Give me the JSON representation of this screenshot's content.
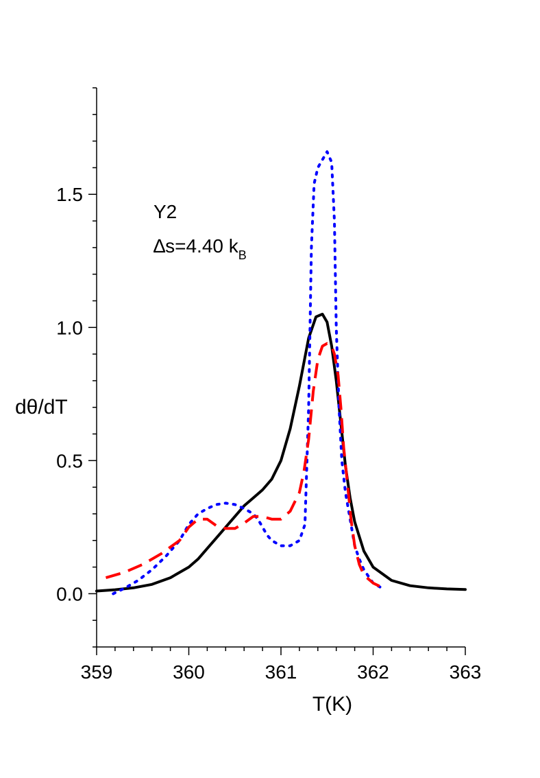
{
  "chart_data": {
    "type": "line",
    "xlabel": "T(K)",
    "ylabel": "dθ/dT",
    "xlim": [
      359,
      363
    ],
    "ylim": [
      -0.2,
      1.9
    ],
    "x_ticks": [
      {
        "value": 359,
        "label": "359"
      },
      {
        "value": 360,
        "label": "360"
      },
      {
        "value": 361,
        "label": "361"
      },
      {
        "value": 362,
        "label": "362"
      },
      {
        "value": 363,
        "label": "363"
      }
    ],
    "y_ticks": [
      {
        "value": 0.0,
        "label": "0.0"
      },
      {
        "value": 0.5,
        "label": "0.5"
      },
      {
        "value": 1.0,
        "label": "1.0"
      },
      {
        "value": 1.5,
        "label": "1.5"
      }
    ],
    "x_minor_step": 0.2,
    "y_minor_step": 0.1,
    "grid": false,
    "annotation": {
      "line1": "Y2",
      "line2_main": "∆s=4.40 k",
      "line2_sub": "B"
    },
    "series": [
      {
        "color": "#000000",
        "style": "solid",
        "x": [
          359.0,
          359.2,
          359.4,
          359.6,
          359.8,
          360.0,
          360.1,
          360.2,
          360.3,
          360.4,
          360.5,
          360.6,
          360.7,
          360.8,
          360.9,
          361.0,
          361.1,
          361.2,
          361.3,
          361.38,
          361.45,
          361.5,
          361.55,
          361.6,
          361.65,
          361.7,
          361.75,
          361.8,
          361.9,
          362.0,
          362.2,
          362.4,
          362.6,
          362.8,
          363.0
        ],
        "y": [
          0.01,
          0.015,
          0.022,
          0.035,
          0.06,
          0.1,
          0.13,
          0.17,
          0.21,
          0.25,
          0.29,
          0.33,
          0.36,
          0.39,
          0.43,
          0.5,
          0.62,
          0.78,
          0.96,
          1.04,
          1.05,
          1.02,
          0.93,
          0.8,
          0.64,
          0.48,
          0.36,
          0.27,
          0.16,
          0.1,
          0.05,
          0.03,
          0.022,
          0.018,
          0.016
        ]
      },
      {
        "color": "#0000ff",
        "style": "dotted",
        "x": [
          359.18,
          359.3,
          359.45,
          359.6,
          359.75,
          359.9,
          360.0,
          360.1,
          360.2,
          360.3,
          360.4,
          360.5,
          360.6,
          360.7,
          360.75,
          360.8,
          360.85,
          360.9,
          361.0,
          361.1,
          361.2,
          361.26,
          361.3,
          361.33,
          361.36,
          361.4,
          361.45,
          361.5,
          361.55,
          361.58,
          361.6,
          361.63,
          361.66,
          361.7,
          361.75,
          361.8,
          361.85,
          361.9,
          362.0,
          362.1
        ],
        "y": [
          0.0,
          0.02,
          0.05,
          0.09,
          0.14,
          0.2,
          0.26,
          0.3,
          0.32,
          0.335,
          0.34,
          0.335,
          0.32,
          0.3,
          0.28,
          0.25,
          0.22,
          0.2,
          0.18,
          0.18,
          0.2,
          0.26,
          0.7,
          1.3,
          1.54,
          1.6,
          1.63,
          1.66,
          1.62,
          1.4,
          1.0,
          0.7,
          0.5,
          0.38,
          0.28,
          0.18,
          0.13,
          0.09,
          0.04,
          0.02
        ]
      },
      {
        "color": "#ff0000",
        "style": "dashed",
        "x": [
          359.1,
          359.3,
          359.5,
          359.7,
          359.9,
          360.0,
          360.1,
          360.2,
          360.3,
          360.4,
          360.5,
          360.6,
          360.7,
          360.8,
          360.9,
          361.0,
          361.1,
          361.2,
          361.25,
          361.3,
          361.35,
          361.4,
          361.45,
          361.5,
          361.55,
          361.58,
          361.62,
          361.65,
          361.68,
          361.72,
          361.76,
          361.8,
          361.85,
          361.9,
          362.0,
          362.12
        ],
        "y": [
          0.06,
          0.08,
          0.11,
          0.15,
          0.2,
          0.25,
          0.28,
          0.28,
          0.255,
          0.245,
          0.245,
          0.265,
          0.29,
          0.29,
          0.28,
          0.28,
          0.31,
          0.38,
          0.46,
          0.58,
          0.76,
          0.88,
          0.93,
          0.94,
          0.93,
          0.9,
          0.82,
          0.7,
          0.55,
          0.42,
          0.28,
          0.18,
          0.11,
          0.07,
          0.04,
          0.02
        ]
      }
    ]
  }
}
